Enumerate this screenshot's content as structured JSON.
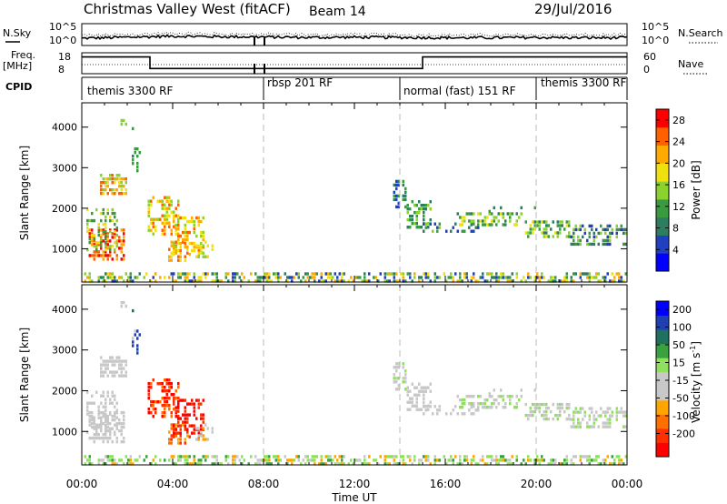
{
  "header": {
    "title": "Christmas Valley West (fitACF)",
    "beam": "Beam 14",
    "date": "29/Jul/2016"
  },
  "left_labels": {
    "nsky": "N.Sky",
    "freq": "Freq.",
    "mhz": "[MHz]",
    "cpid": "CPID"
  },
  "right_labels": {
    "nsearch": "N.Search",
    "nave": "Nave"
  },
  "colors": {
    "power_scale": [
      "#0000ff",
      "#2040c0",
      "#2e7d60",
      "#3a9a40",
      "#8cd22e",
      "#f0e010",
      "#ffaa00",
      "#ff6000",
      "#ff0000"
    ],
    "velocity_scale": [
      "#ff0000",
      "#ff3000",
      "#ff7000",
      "#ffa500",
      "#c8c8c8",
      "#c8c8c8",
      "#90e060",
      "#3aa040",
      "#207060",
      "#2040b0",
      "#0000ff"
    ]
  },
  "chart_data": [
    {
      "type": "line",
      "name": "noise-panel",
      "yticks_left": [
        "10^5",
        "10^0"
      ],
      "yticks_right": [
        "10^5",
        "10^0"
      ],
      "x": [
        "00:00",
        "02:00",
        "04:00",
        "06:00",
        "08:00",
        "10:00",
        "12:00",
        "14:00",
        "16:00",
        "18:00",
        "20:00",
        "22:00",
        "24:00"
      ],
      "series": [
        {
          "values": [
            0.8,
            1.2,
            1.6,
            1.4,
            1.3,
            1.1,
            1.2,
            1.1,
            1.0,
            1.0,
            1.1,
            1.0,
            1.0
          ]
        }
      ]
    },
    {
      "type": "line",
      "name": "frequency-panel",
      "yticks_left": [
        "18",
        "8"
      ],
      "yticks_right": [
        "60",
        "0"
      ],
      "series": [
        {
          "x": [
            0,
            3,
            3,
            15,
            15,
            24
          ],
          "values": [
            16,
            16,
            10.5,
            10.5,
            16,
            16
          ]
        }
      ]
    },
    {
      "type": "table",
      "name": "cpid-bar",
      "segments": [
        {
          "label": "themis 3300 RF",
          "start": 0,
          "end": 8
        },
        {
          "label": "rbsp 201 RF",
          "start": 8,
          "end": 14
        },
        {
          "label": "normal (fast) 151 RF",
          "start": 14,
          "end": 20
        },
        {
          "label": "themis 3300 RF",
          "start": 20,
          "end": 24
        }
      ]
    },
    {
      "type": "heatmap",
      "name": "power-panel",
      "ylabel": "Slant Range [km]",
      "yticks": [
        1000,
        2000,
        3000,
        4000
      ],
      "ylim": [
        180,
        4600
      ],
      "colorbar_label": "Power [dB]",
      "colorbar_ticks": [
        4,
        8,
        12,
        16,
        20,
        24,
        28
      ],
      "colorbar_range": [
        0,
        30
      ]
    },
    {
      "type": "heatmap",
      "name": "velocity-panel",
      "ylabel": "Slant Range [km]",
      "yticks": [
        1000,
        2000,
        3000,
        4000
      ],
      "ylim": [
        180,
        4600
      ],
      "colorbar_label": "Velocity [m s",
      "colorbar_label_sup": "-1",
      "colorbar_label_end": "]",
      "colorbar_ticks": [
        "200",
        "100",
        "50",
        "15",
        "-15",
        "-50",
        "-100",
        "-200"
      ],
      "xticks": [
        "00:00",
        "04:00",
        "08:00",
        "12:00",
        "16:00",
        "20:00",
        "00:00"
      ],
      "xlabel": "Time UT"
    }
  ]
}
